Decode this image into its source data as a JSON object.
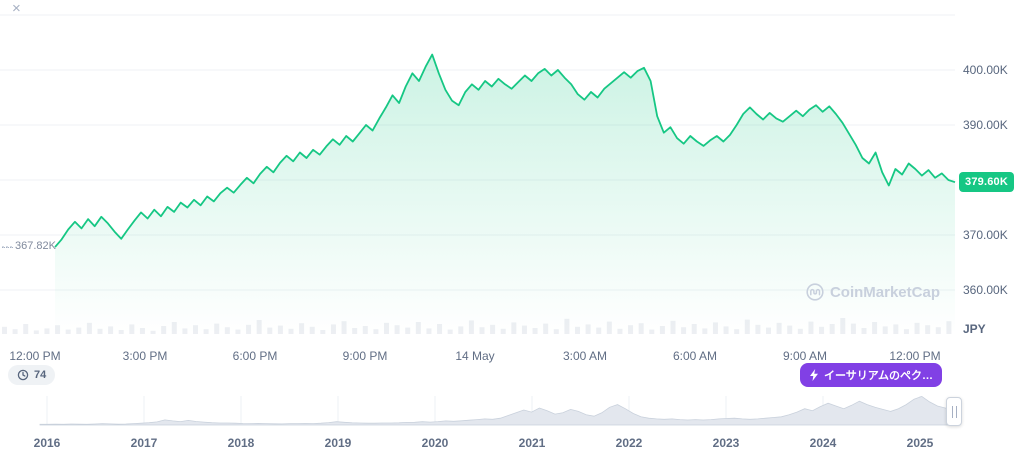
{
  "window": {
    "close": "×"
  },
  "y_axis": {
    "ticks": [
      {
        "label": "400.00K",
        "value": 400
      },
      {
        "label": "390.00K",
        "value": 390
      },
      {
        "label": "370.00K",
        "value": 370
      },
      {
        "label": "360.00K",
        "value": 360
      }
    ],
    "gridline_values": [
      410,
      400,
      390,
      380,
      370,
      360
    ],
    "currency_label": "JPY"
  },
  "price_badge": {
    "label": "379.60K",
    "value": 379.6
  },
  "min_label": {
    "label": "367.82K",
    "value": 367.82
  },
  "x_axis": {
    "ticks": [
      "12:00 PM",
      "3:00 PM",
      "6:00 PM",
      "9:00 PM",
      "14 May",
      "3:00 AM",
      "6:00 AM",
      "9:00 AM",
      "12:00 PM"
    ]
  },
  "toolbar": {
    "history_badge": "74",
    "event_badge": "イーサリアムのペク…"
  },
  "watermark": {
    "label": "CoinMarketCap"
  },
  "timeline": {
    "years": [
      "2016",
      "2017",
      "2018",
      "2019",
      "2020",
      "2021",
      "2022",
      "2023",
      "2024",
      "2025"
    ]
  },
  "colors": {
    "accent_green": "#16c784",
    "badge_purple": "#8140e5",
    "grid": "#eff2f5",
    "axis_text": "#58667e",
    "muted_text": "#808a9d",
    "volume_bar": "#edeff3",
    "history_fill": "#e3e7ee",
    "history_stroke": "#c9d1dc"
  },
  "chart_data": [
    {
      "type": "area",
      "name": "price_jpy",
      "title": "Price (JPY, thousands)",
      "x_tick_labels": [
        "12:00 PM",
        "3:00 PM",
        "6:00 PM",
        "9:00 PM",
        "14 May",
        "3:00 AM",
        "6:00 AM",
        "9:00 AM",
        "12:00 PM"
      ],
      "ylim": [
        352,
        410
      ],
      "min_value": 367.82,
      "last_value": 379.6,
      "values": [
        367.8,
        369.2,
        371.0,
        372.4,
        371.2,
        372.9,
        371.6,
        373.3,
        372.1,
        370.6,
        369.3,
        371.0,
        372.6,
        374.1,
        373.0,
        374.6,
        373.4,
        375.1,
        374.2,
        375.9,
        375.0,
        376.4,
        375.4,
        377.0,
        376.1,
        377.6,
        378.6,
        377.7,
        379.1,
        380.4,
        379.4,
        381.1,
        382.4,
        381.4,
        383.1,
        384.4,
        383.4,
        385.0,
        384.0,
        385.5,
        384.6,
        386.1,
        387.4,
        386.4,
        388.0,
        387.0,
        388.5,
        390.0,
        389.0,
        391.2,
        393.2,
        395.4,
        394.0,
        397.0,
        399.4,
        398.0,
        400.6,
        402.8,
        399.4,
        396.4,
        394.4,
        393.6,
        396.0,
        397.4,
        396.4,
        398.0,
        397.0,
        398.4,
        397.4,
        396.6,
        397.8,
        399.0,
        398.0,
        399.4,
        400.2,
        399.0,
        400.0,
        398.6,
        397.4,
        395.6,
        394.6,
        396.0,
        395.0,
        396.6,
        397.6,
        398.6,
        399.6,
        398.6,
        399.8,
        400.4,
        398.0,
        391.6,
        388.6,
        389.6,
        387.6,
        386.6,
        388.0,
        387.0,
        386.2,
        387.2,
        388.0,
        387.0,
        388.2,
        390.0,
        392.0,
        393.2,
        392.0,
        391.0,
        392.2,
        391.2,
        390.6,
        391.6,
        392.6,
        391.6,
        392.8,
        393.6,
        392.4,
        393.4,
        392.0,
        390.4,
        388.4,
        386.4,
        384.0,
        383.0,
        385.0,
        381.4,
        379.0,
        382.0,
        381.0,
        383.0,
        382.0,
        380.8,
        381.8,
        380.4,
        381.2,
        380.0,
        379.6
      ]
    },
    {
      "type": "bar",
      "name": "volume_relative",
      "values": [
        18,
        12,
        25,
        9,
        14,
        22,
        11,
        16,
        28,
        13,
        19,
        10,
        24,
        15,
        8,
        20,
        30,
        14,
        22,
        12,
        26,
        17,
        11,
        23,
        35,
        16,
        21,
        13,
        27,
        18,
        10,
        24,
        32,
        15,
        20,
        12,
        28,
        22,
        16,
        30,
        14,
        25,
        11,
        19,
        34,
        17,
        23,
        13,
        29,
        21,
        15,
        26,
        12,
        38,
        18,
        24,
        16,
        31,
        13,
        22,
        27,
        11,
        20,
        33,
        17,
        25,
        14,
        29,
        19,
        12,
        36,
        23,
        16,
        28,
        21,
        13,
        31,
        18,
        25,
        40,
        26,
        15,
        30,
        19,
        24,
        12,
        28,
        22,
        17,
        32
      ]
    },
    {
      "type": "area",
      "name": "history_minimap",
      "x_tick_labels": [
        "2016",
        "2017",
        "2018",
        "2019",
        "2020",
        "2021",
        "2022",
        "2023",
        "2024",
        "2025"
      ],
      "values": [
        1,
        1,
        1.2,
        1,
        1.4,
        1.2,
        1,
        1.5,
        2,
        1.6,
        1.2,
        1.5,
        2,
        2.6,
        3.4,
        4.6,
        7.5,
        6,
        5,
        6.8,
        5.2,
        4.2,
        3.4,
        3,
        3,
        2.6,
        2.2,
        2,
        2.4,
        2,
        1.8,
        1.6,
        2,
        2,
        2.2,
        2,
        2.6,
        3.6,
        4.8,
        4,
        3.2,
        3,
        2.6,
        2.6,
        3,
        3,
        3.2,
        3.8,
        4,
        4.8,
        4.2,
        5,
        6,
        5.4,
        6.2,
        7,
        8,
        9,
        8.4,
        10,
        14,
        18,
        22,
        19,
        25,
        21,
        16,
        18,
        23,
        20,
        15,
        13,
        18,
        26,
        30,
        24,
        17,
        12,
        10,
        9,
        8.4,
        9,
        8,
        7.4,
        8,
        7.4,
        8,
        9,
        9.6,
        10,
        9,
        8.4,
        9,
        10,
        11,
        12,
        15,
        19,
        24,
        21,
        27,
        32,
        28,
        24,
        29,
        35,
        30,
        26,
        23,
        20,
        24,
        30,
        38,
        42,
        34,
        28,
        25,
        22
      ]
    }
  ]
}
